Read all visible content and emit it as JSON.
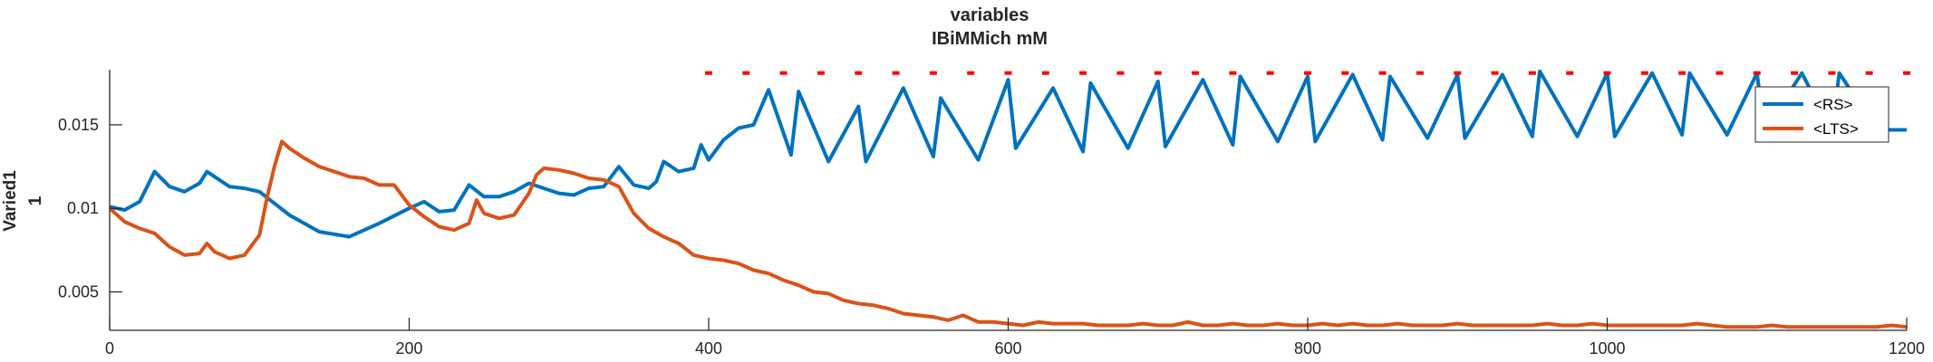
{
  "chart_data": {
    "type": "line",
    "title": [
      "variables",
      "IBiMMich mM"
    ],
    "xlabel": "",
    "ylabel": [
      "Varied1",
      "1"
    ],
    "xlim": [
      0,
      1200
    ],
    "ylim": [
      0.0027,
      0.0183
    ],
    "x_ticks": [
      0,
      200,
      400,
      600,
      800,
      1000,
      1200
    ],
    "x_tick_labels": [
      "0",
      "200",
      "400",
      "600",
      "800",
      "1000",
      "1200"
    ],
    "y_ticks": [
      0.005,
      0.01,
      0.015
    ],
    "y_tick_labels": [
      "0.005",
      "0.01",
      "0.015"
    ],
    "legend_position": "top-right",
    "grid": false,
    "series": [
      {
        "name": "<RS>",
        "color": "#0072BD",
        "x": [
          0,
          10,
          20,
          30,
          40,
          50,
          60,
          65,
          70,
          80,
          90,
          100,
          120,
          140,
          160,
          180,
          200,
          210,
          220,
          230,
          240,
          250,
          260,
          270,
          280,
          290,
          300,
          310,
          320,
          330,
          340,
          350,
          360,
          365,
          370,
          380,
          390,
          395,
          400,
          410,
          420,
          430,
          440,
          455,
          460,
          480,
          500,
          505,
          530,
          550,
          555,
          580,
          600,
          605,
          630,
          650,
          655,
          680,
          700,
          705,
          730,
          750,
          755,
          780,
          800,
          805,
          830,
          850,
          855,
          880,
          900,
          905,
          930,
          950,
          955,
          980,
          1000,
          1005,
          1030,
          1050,
          1055,
          1080,
          1100,
          1105,
          1130,
          1150,
          1155,
          1180,
          1200
        ],
        "values": [
          0.0101,
          0.0099,
          0.0104,
          0.0122,
          0.0113,
          0.011,
          0.0115,
          0.0122,
          0.0119,
          0.0113,
          0.0112,
          0.011,
          0.0096,
          0.0086,
          0.0083,
          0.0091,
          0.01,
          0.0104,
          0.0098,
          0.0099,
          0.0114,
          0.0107,
          0.0107,
          0.011,
          0.0115,
          0.0112,
          0.0109,
          0.0108,
          0.0112,
          0.0113,
          0.0125,
          0.0114,
          0.0112,
          0.0116,
          0.0128,
          0.0122,
          0.0124,
          0.0138,
          0.0129,
          0.0141,
          0.0148,
          0.015,
          0.0171,
          0.0132,
          0.017,
          0.0128,
          0.0161,
          0.0128,
          0.0172,
          0.0131,
          0.0166,
          0.0129,
          0.0177,
          0.0136,
          0.0172,
          0.0134,
          0.0175,
          0.0136,
          0.0176,
          0.0137,
          0.0177,
          0.0138,
          0.0179,
          0.014,
          0.0179,
          0.014,
          0.018,
          0.0141,
          0.0179,
          0.0142,
          0.018,
          0.0142,
          0.018,
          0.0143,
          0.0182,
          0.0143,
          0.0181,
          0.0143,
          0.0181,
          0.0144,
          0.0181,
          0.0144,
          0.0181,
          0.0146,
          0.0181,
          0.0146,
          0.0181,
          0.0147,
          0.0147
        ]
      },
      {
        "name": "<LTS>",
        "color": "#D95319",
        "x": [
          0,
          10,
          20,
          30,
          40,
          50,
          60,
          65,
          70,
          80,
          90,
          100,
          105,
          110,
          115,
          120,
          130,
          140,
          150,
          160,
          170,
          180,
          190,
          200,
          210,
          215,
          220,
          230,
          240,
          245,
          250,
          260,
          270,
          280,
          285,
          290,
          300,
          310,
          320,
          330,
          340,
          350,
          360,
          370,
          380,
          390,
          400,
          410,
          420,
          430,
          440,
          450,
          460,
          470,
          480,
          490,
          500,
          510,
          520,
          530,
          540,
          550,
          560,
          570,
          580,
          590,
          600,
          610,
          620,
          630,
          640,
          650,
          660,
          670,
          680,
          690,
          700,
          710,
          720,
          730,
          740,
          750,
          760,
          770,
          780,
          790,
          800,
          810,
          820,
          830,
          840,
          850,
          860,
          870,
          880,
          890,
          900,
          910,
          920,
          930,
          940,
          950,
          960,
          970,
          980,
          990,
          1000,
          1010,
          1020,
          1030,
          1040,
          1050,
          1060,
          1070,
          1080,
          1090,
          1100,
          1110,
          1120,
          1130,
          1140,
          1150,
          1160,
          1170,
          1180,
          1190,
          1200
        ],
        "values": [
          0.01,
          0.0092,
          0.0088,
          0.0085,
          0.0077,
          0.0072,
          0.0073,
          0.0079,
          0.0074,
          0.007,
          0.0072,
          0.0084,
          0.0106,
          0.0125,
          0.014,
          0.0136,
          0.013,
          0.0125,
          0.0122,
          0.0119,
          0.0118,
          0.0114,
          0.0114,
          0.0102,
          0.0095,
          0.0092,
          0.0089,
          0.0087,
          0.0091,
          0.0105,
          0.0097,
          0.0094,
          0.0096,
          0.0109,
          0.012,
          0.0124,
          0.0123,
          0.0121,
          0.0118,
          0.0117,
          0.0113,
          0.0097,
          0.0088,
          0.0083,
          0.0079,
          0.0072,
          0.007,
          0.0069,
          0.0067,
          0.0063,
          0.0061,
          0.0057,
          0.0054,
          0.005,
          0.0049,
          0.0045,
          0.0043,
          0.0042,
          0.004,
          0.0037,
          0.0036,
          0.0035,
          0.0033,
          0.0036,
          0.0032,
          0.0032,
          0.0031,
          0.003,
          0.0032,
          0.0031,
          0.0031,
          0.0031,
          0.003,
          0.003,
          0.003,
          0.0031,
          0.003,
          0.003,
          0.0032,
          0.003,
          0.003,
          0.0031,
          0.003,
          0.003,
          0.0031,
          0.003,
          0.003,
          0.0031,
          0.003,
          0.0031,
          0.003,
          0.003,
          0.0031,
          0.003,
          0.003,
          0.003,
          0.0031,
          0.003,
          0.003,
          0.003,
          0.003,
          0.003,
          0.0031,
          0.003,
          0.003,
          0.0031,
          0.003,
          0.003,
          0.003,
          0.003,
          0.003,
          0.003,
          0.0031,
          0.003,
          0.0029,
          0.0029,
          0.0029,
          0.003,
          0.0029,
          0.0029,
          0.0029,
          0.0029,
          0.0029,
          0.0029,
          0.0029,
          0.003,
          0.0029
        ]
      }
    ],
    "markers": {
      "color": "#FF0000",
      "style": "dash",
      "y": 0.0181,
      "x": [
        400,
        425,
        450,
        475,
        500,
        525,
        550,
        575,
        600,
        625,
        650,
        675,
        700,
        725,
        750,
        775,
        800,
        825,
        850,
        875,
        900,
        925,
        950,
        975,
        1000,
        1025,
        1050,
        1075,
        1100,
        1125,
        1150,
        1175,
        1200
      ]
    }
  }
}
